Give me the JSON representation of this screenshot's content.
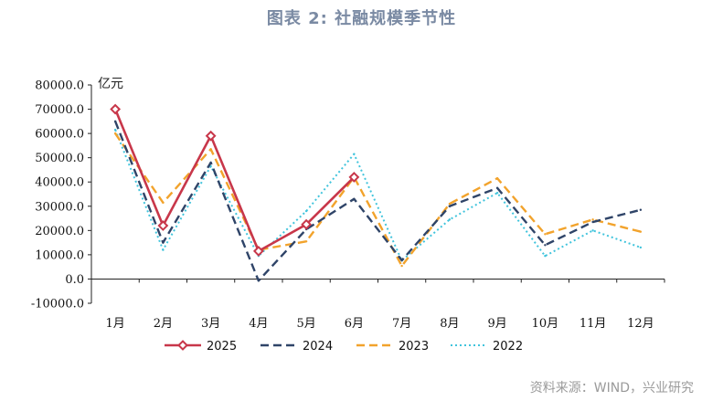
{
  "title": "图表 2:  社融规模季节性",
  "unit": "亿元",
  "source": "资料来源：WIND，兴业研究",
  "chart_data": {
    "type": "line",
    "categories": [
      "1月",
      "2月",
      "3月",
      "4月",
      "5月",
      "6月",
      "7月",
      "8月",
      "9月",
      "10月",
      "11月",
      "12月"
    ],
    "ylim": [
      -10000,
      80000
    ],
    "ytick_step": 10000,
    "ytick_labels": [
      "-10000.0",
      "0.0",
      "10000.0",
      "20000.0",
      "30000.0",
      "40000.0",
      "50000.0",
      "60000.0",
      "70000.0",
      "80000.0"
    ],
    "legend_position": "bottom",
    "grid": false,
    "series": [
      {
        "name": "2025",
        "color": "#c8374a",
        "style": "solid-marker",
        "values": [
          70000,
          22000,
          59000,
          11500,
          22500,
          42000,
          null,
          null,
          null,
          null,
          null,
          null
        ]
      },
      {
        "name": "2024",
        "color": "#2f4468",
        "style": "dash",
        "values": [
          65000,
          15000,
          48000,
          -700,
          20500,
          33000,
          7700,
          30000,
          37500,
          14000,
          23500,
          28500
        ]
      },
      {
        "name": "2023",
        "color": "#f2a32c",
        "style": "dash",
        "values": [
          60000,
          31500,
          53500,
          12000,
          15500,
          42000,
          5400,
          31000,
          41500,
          18500,
          24500,
          19500
        ]
      },
      {
        "name": "2022",
        "color": "#41c4dc",
        "style": "dot",
        "values": [
          61500,
          12000,
          46500,
          9500,
          28000,
          51500,
          7600,
          24500,
          35500,
          9500,
          20000,
          13000
        ]
      }
    ]
  }
}
